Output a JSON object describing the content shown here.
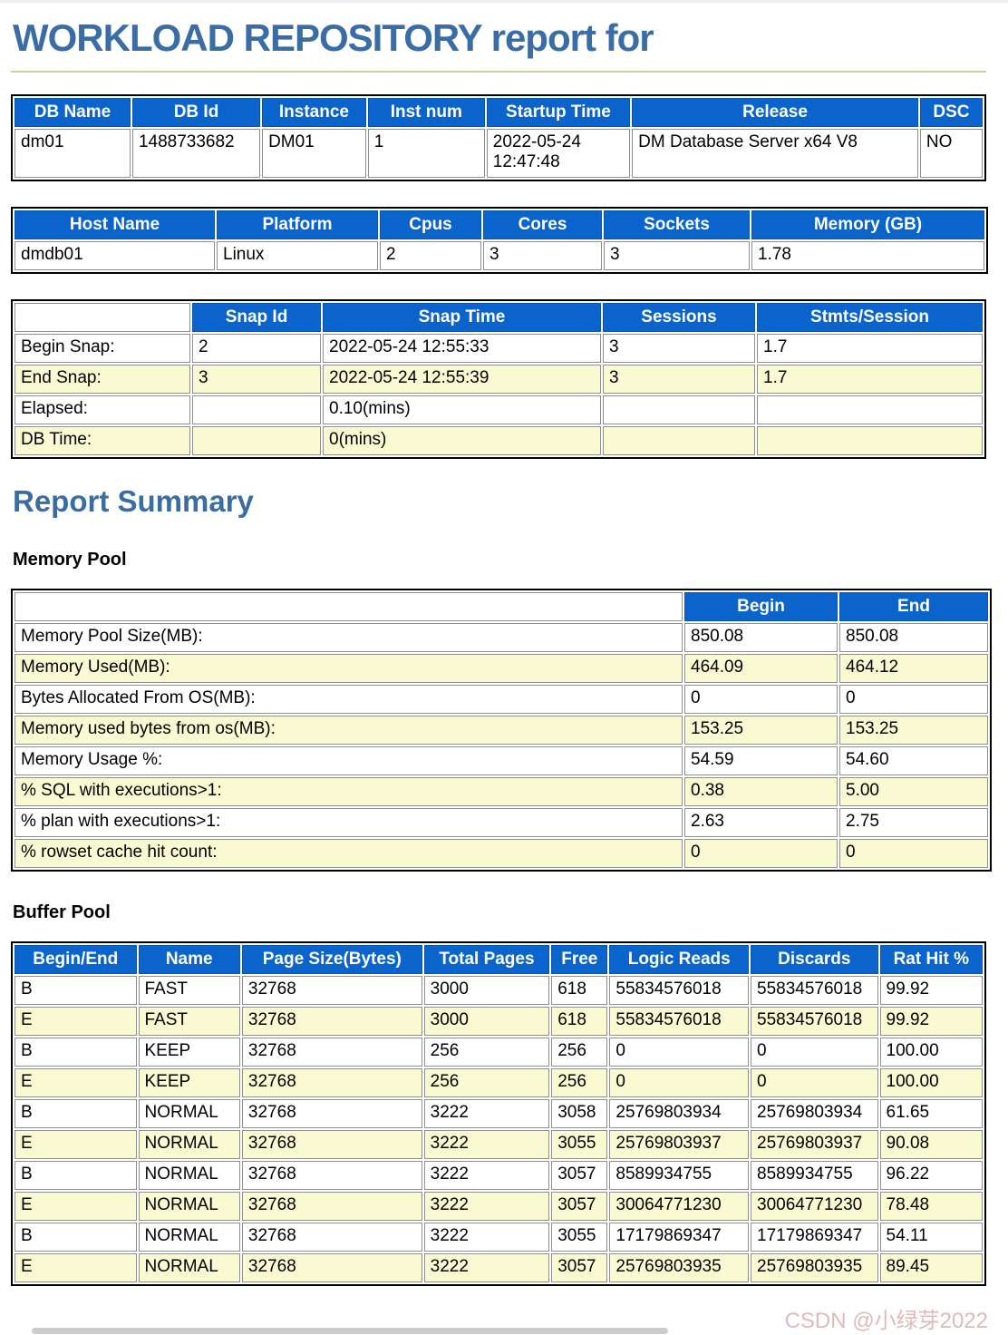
{
  "page": {
    "title": "WORKLOAD REPOSITORY report for",
    "summary_heading": "Report Summary",
    "watermark": "CSDN @小绿芽2022"
  },
  "colors": {
    "table_header_bg": "#0a64cc",
    "row_alternate_bg": "#fafad2",
    "heading_blue": "#3a6da5",
    "rule_khaki": "#cfcf9e"
  },
  "db_info_table": {
    "headers": [
      "DB Name",
      "DB Id",
      "Instance",
      "Inst num",
      "Startup Time",
      "Release",
      "DSC"
    ],
    "rows": [
      [
        "dm01",
        "1488733682",
        "DM01",
        "1",
        "2022-05-24 12:47:48",
        "DM Database Server x64 V8",
        "NO"
      ]
    ]
  },
  "host_info_table": {
    "headers": [
      "Host Name",
      "Platform",
      "Cpus",
      "Cores",
      "Sockets",
      "Memory (GB)"
    ],
    "rows": [
      [
        "dmdb01",
        "Linux",
        "2",
        "3",
        "3",
        "1.78"
      ]
    ]
  },
  "snapshot_table": {
    "headers": [
      "",
      "Snap Id",
      "Snap Time",
      "Sessions",
      "Stmts/Session"
    ],
    "rows": [
      [
        "Begin Snap:",
        "2",
        "2022-05-24 12:55:33",
        "3",
        "1.7"
      ],
      [
        "End Snap:",
        "3",
        "2022-05-24 12:55:39",
        "3",
        "1.7"
      ],
      [
        "Elapsed:",
        "",
        "0.10(mins)",
        "",
        ""
      ],
      [
        "DB Time:",
        "",
        "0(mins)",
        "",
        ""
      ]
    ]
  },
  "memory_pool": {
    "heading": "Memory Pool",
    "headers": [
      "",
      "Begin",
      "End"
    ],
    "rows": [
      [
        "Memory Pool Size(MB):",
        "850.08",
        "850.08"
      ],
      [
        "Memory Used(MB):",
        "464.09",
        "464.12"
      ],
      [
        "Bytes Allocated From OS(MB):",
        "0",
        "0"
      ],
      [
        "Memory used bytes from os(MB):",
        "153.25",
        "153.25"
      ],
      [
        "Memory Usage %:",
        "54.59",
        "54.60"
      ],
      [
        "% SQL with executions>1:",
        "0.38",
        "5.00"
      ],
      [
        "% plan with executions>1:",
        "2.63",
        "2.75"
      ],
      [
        "% rowset cache hit count:",
        "0",
        "0"
      ]
    ]
  },
  "buffer_pool": {
    "heading": "Buffer Pool",
    "headers": [
      "Begin/End",
      "Name",
      "Page Size(Bytes)",
      "Total Pages",
      "Free",
      "Logic Reads",
      "Discards",
      "Rat Hit %"
    ],
    "rows": [
      [
        "B",
        "FAST",
        "32768",
        "3000",
        "618",
        "55834576018",
        "55834576018",
        "99.92"
      ],
      [
        "E",
        "FAST",
        "32768",
        "3000",
        "618",
        "55834576018",
        "55834576018",
        "99.92"
      ],
      [
        "B",
        "KEEP",
        "32768",
        "256",
        "256",
        "0",
        "0",
        "100.00"
      ],
      [
        "E",
        "KEEP",
        "32768",
        "256",
        "256",
        "0",
        "0",
        "100.00"
      ],
      [
        "B",
        "NORMAL",
        "32768",
        "3222",
        "3058",
        "25769803934",
        "25769803934",
        "61.65"
      ],
      [
        "E",
        "NORMAL",
        "32768",
        "3222",
        "3055",
        "25769803937",
        "25769803937",
        "90.08"
      ],
      [
        "B",
        "NORMAL",
        "32768",
        "3222",
        "3057",
        "8589934755",
        "8589934755",
        "96.22"
      ],
      [
        "E",
        "NORMAL",
        "32768",
        "3222",
        "3057",
        "30064771230",
        "30064771230",
        "78.48"
      ],
      [
        "B",
        "NORMAL",
        "32768",
        "3222",
        "3055",
        "17179869347",
        "17179869347",
        "54.11"
      ],
      [
        "E",
        "NORMAL",
        "32768",
        "3222",
        "3057",
        "25769803935",
        "25769803935",
        "89.45"
      ]
    ]
  }
}
